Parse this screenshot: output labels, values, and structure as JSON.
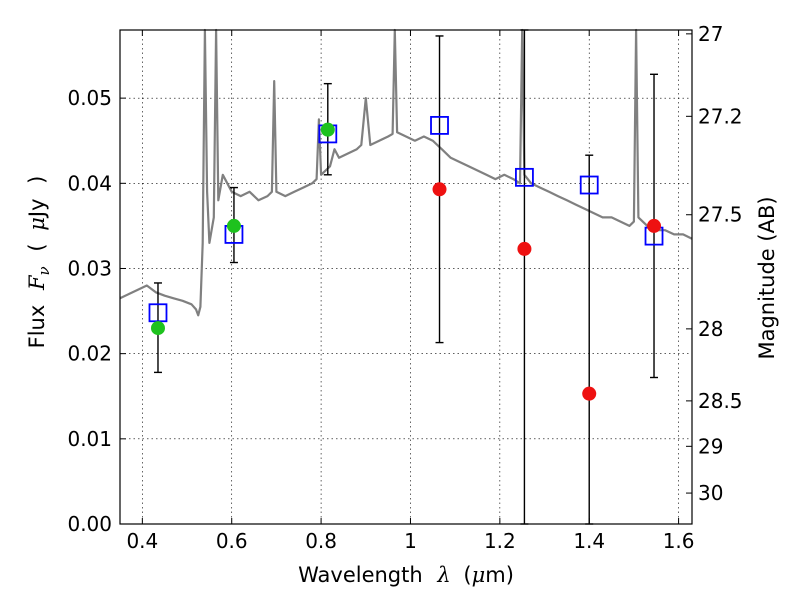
{
  "chart_data": {
    "type": "scatter",
    "xlabel": {
      "prefix": "Wavelength",
      "symbol": "λ",
      "unit_open": "(",
      "unit_mu": "μ",
      "unit_rest": "m)"
    },
    "ylabel": {
      "prefix": "Flux",
      "symbol": "F",
      "subscript": "ν",
      "unit_open": "(",
      "unit_mu": "μ",
      "unit_rest": "Jy",
      "unit_close": ")"
    },
    "y2label": "Magnitude (AB)",
    "xlim": [
      0.35,
      1.63
    ],
    "ylim": [
      0.0,
      0.058
    ],
    "grid": true,
    "x_ticks": [
      {
        "value": 0.4,
        "label": "0.4"
      },
      {
        "value": 0.6,
        "label": "0.6"
      },
      {
        "value": 0.8,
        "label": "0.8"
      },
      {
        "value": 1.0,
        "label": "1"
      },
      {
        "value": 1.2,
        "label": "1.2"
      },
      {
        "value": 1.4,
        "label": "1.4"
      },
      {
        "value": 1.6,
        "label": "1.6"
      }
    ],
    "y_ticks": [
      {
        "value": 0.0,
        "label": "0.00"
      },
      {
        "value": 0.01,
        "label": "0.01"
      },
      {
        "value": 0.02,
        "label": "0.02"
      },
      {
        "value": 0.03,
        "label": "0.03"
      },
      {
        "value": 0.04,
        "label": "0.04"
      },
      {
        "value": 0.05,
        "label": "0.05"
      }
    ],
    "y2_ticks": [
      {
        "mag": 27.0,
        "label": "27"
      },
      {
        "mag": 27.2,
        "label": "27.2"
      },
      {
        "mag": 27.5,
        "label": "27.5"
      },
      {
        "mag": 28.0,
        "label": "28"
      },
      {
        "mag": 28.5,
        "label": "28.5"
      },
      {
        "mag": 29.0,
        "label": "29"
      },
      {
        "mag": 30.0,
        "label": "30"
      }
    ],
    "model_spectrum": {
      "color": "#808080",
      "points": [
        [
          0.35,
          0.0265
        ],
        [
          0.37,
          0.027
        ],
        [
          0.39,
          0.0275
        ],
        [
          0.41,
          0.028
        ],
        [
          0.43,
          0.0272
        ],
        [
          0.45,
          0.0268
        ],
        [
          0.47,
          0.0265
        ],
        [
          0.49,
          0.0262
        ],
        [
          0.51,
          0.0258
        ],
        [
          0.52,
          0.0252
        ],
        [
          0.525,
          0.0245
        ],
        [
          0.53,
          0.0255
        ],
        [
          0.535,
          0.033
        ],
        [
          0.54,
          0.058
        ],
        [
          0.545,
          0.039
        ],
        [
          0.55,
          0.033
        ],
        [
          0.56,
          0.036
        ],
        [
          0.565,
          0.058
        ],
        [
          0.57,
          0.038
        ],
        [
          0.58,
          0.041
        ],
        [
          0.59,
          0.04
        ],
        [
          0.6,
          0.039
        ],
        [
          0.62,
          0.0385
        ],
        [
          0.64,
          0.039
        ],
        [
          0.66,
          0.038
        ],
        [
          0.68,
          0.0385
        ],
        [
          0.69,
          0.039
        ],
        [
          0.695,
          0.052
        ],
        [
          0.7,
          0.039
        ],
        [
          0.72,
          0.0385
        ],
        [
          0.74,
          0.039
        ],
        [
          0.76,
          0.0395
        ],
        [
          0.78,
          0.04
        ],
        [
          0.79,
          0.0405
        ],
        [
          0.795,
          0.0475
        ],
        [
          0.8,
          0.041
        ],
        [
          0.82,
          0.042
        ],
        [
          0.83,
          0.044
        ],
        [
          0.84,
          0.043
        ],
        [
          0.86,
          0.0435
        ],
        [
          0.88,
          0.044
        ],
        [
          0.89,
          0.0445
        ],
        [
          0.9,
          0.05
        ],
        [
          0.91,
          0.0445
        ],
        [
          0.93,
          0.045
        ],
        [
          0.95,
          0.0455
        ],
        [
          0.96,
          0.0458
        ],
        [
          0.965,
          0.058
        ],
        [
          0.97,
          0.046
        ],
        [
          0.99,
          0.0455
        ],
        [
          1.01,
          0.045
        ],
        [
          1.03,
          0.0455
        ],
        [
          1.05,
          0.045
        ],
        [
          1.06,
          0.0445
        ],
        [
          1.07,
          0.044
        ],
        [
          1.09,
          0.043
        ],
        [
          1.11,
          0.0425
        ],
        [
          1.13,
          0.042
        ],
        [
          1.15,
          0.0415
        ],
        [
          1.17,
          0.041
        ],
        [
          1.19,
          0.0405
        ],
        [
          1.21,
          0.041
        ],
        [
          1.23,
          0.0405
        ],
        [
          1.245,
          0.04
        ],
        [
          1.25,
          0.058
        ],
        [
          1.255,
          0.041
        ],
        [
          1.27,
          0.04
        ],
        [
          1.29,
          0.0395
        ],
        [
          1.31,
          0.039
        ],
        [
          1.33,
          0.0385
        ],
        [
          1.35,
          0.038
        ],
        [
          1.37,
          0.0375
        ],
        [
          1.39,
          0.037
        ],
        [
          1.41,
          0.0365
        ],
        [
          1.43,
          0.036
        ],
        [
          1.45,
          0.036
        ],
        [
          1.47,
          0.0355
        ],
        [
          1.49,
          0.035
        ],
        [
          1.5,
          0.0355
        ],
        [
          1.505,
          0.058
        ],
        [
          1.51,
          0.036
        ],
        [
          1.53,
          0.035
        ],
        [
          1.55,
          0.0345
        ],
        [
          1.57,
          0.0345
        ],
        [
          1.59,
          0.034
        ],
        [
          1.61,
          0.034
        ],
        [
          1.63,
          0.0335
        ]
      ]
    },
    "series": [
      {
        "marker": "open-square",
        "color": "#0000ff",
        "points": [
          {
            "x": 0.435,
            "y": 0.0248
          },
          {
            "x": 0.605,
            "y": 0.034
          },
          {
            "x": 0.815,
            "y": 0.0458
          },
          {
            "x": 1.065,
            "y": 0.0468
          },
          {
            "x": 1.255,
            "y": 0.0407
          },
          {
            "x": 1.4,
            "y": 0.0398
          },
          {
            "x": 1.545,
            "y": 0.0338
          }
        ]
      },
      {
        "marker": "filled-circle",
        "color": "#1ec21e",
        "points": [
          {
            "x": 0.435,
            "y": 0.023
          },
          {
            "x": 0.605,
            "y": 0.035
          },
          {
            "x": 0.815,
            "y": 0.0463
          }
        ]
      },
      {
        "marker": "filled-circle",
        "color": "#ee1111",
        "points": [
          {
            "x": 1.065,
            "y": 0.0393
          },
          {
            "x": 1.255,
            "y": 0.0323
          },
          {
            "x": 1.4,
            "y": 0.0153
          },
          {
            "x": 1.545,
            "y": 0.035
          }
        ]
      }
    ],
    "error_bars": [
      {
        "x": 0.435,
        "low": 0.0178,
        "high": 0.0283
      },
      {
        "x": 0.605,
        "low": 0.0307,
        "high": 0.0395
      },
      {
        "x": 0.815,
        "low": 0.041,
        "high": 0.0517
      },
      {
        "x": 1.065,
        "low": 0.0213,
        "high": 0.0573
      },
      {
        "x": 1.255,
        "low": 0.0,
        "high": 0.058
      },
      {
        "x": 1.4,
        "low": 0.0,
        "high": 0.0433
      },
      {
        "x": 1.545,
        "low": 0.0172,
        "high": 0.0528
      }
    ]
  }
}
